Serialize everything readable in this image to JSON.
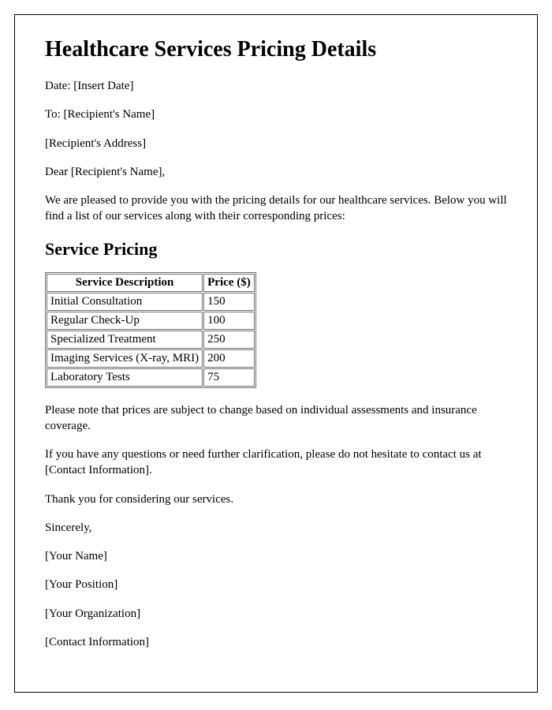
{
  "title": "Healthcare Services Pricing Details",
  "date_line": "Date: [Insert Date]",
  "to_line": "To: [Recipient's Name]",
  "address_line": "[Recipient's Address]",
  "greeting": "Dear [Recipient's Name],",
  "intro": "We are pleased to provide you with the pricing details for our healthcare services. Below you will find a list of our services along with their corresponding prices:",
  "section_heading": "Service Pricing",
  "table": {
    "columns": [
      "Service Description",
      "Price ($)"
    ],
    "rows": [
      [
        "Initial Consultation",
        "150"
      ],
      [
        "Regular Check-Up",
        "100"
      ],
      [
        "Specialized Treatment",
        "250"
      ],
      [
        "Imaging Services (X-ray, MRI)",
        "200"
      ],
      [
        "Laboratory Tests",
        "75"
      ]
    ]
  },
  "note": "Please note that prices are subject to change based on individual assessments and insurance coverage.",
  "contact_paragraph": "If you have any questions or need further clarification, please do not hesitate to contact us at [Contact Information].",
  "thanks": "Thank you for considering our services.",
  "closing": "Sincerely,",
  "signature": {
    "name": "[Your Name]",
    "position": "[Your Position]",
    "organization": "[Your Organization]",
    "contact": "[Contact Information]"
  }
}
